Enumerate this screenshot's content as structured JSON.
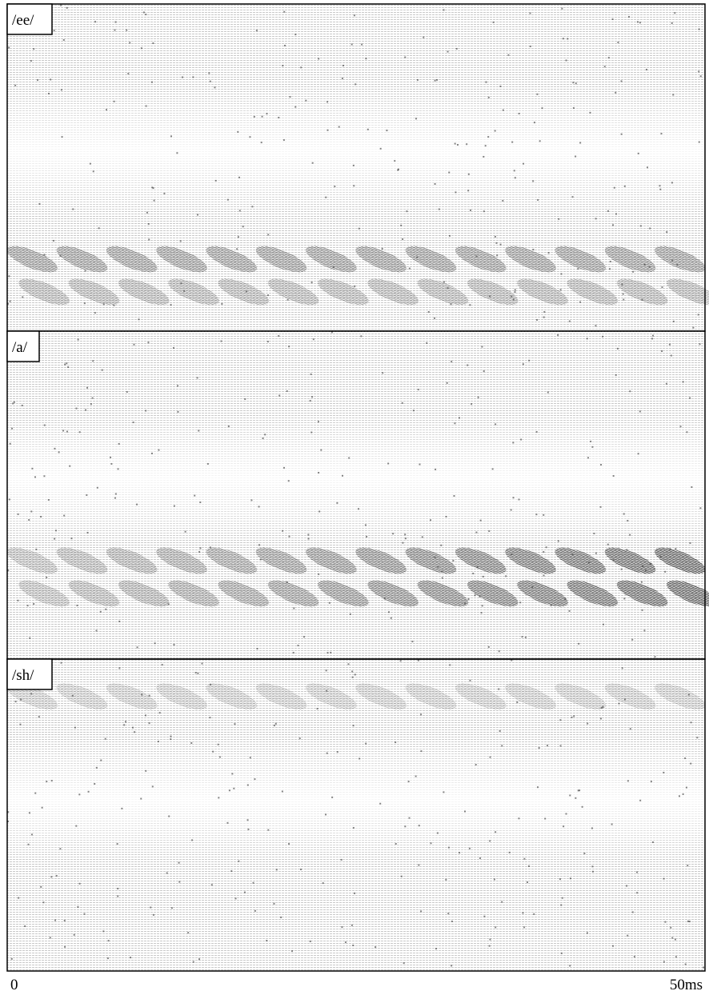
{
  "panels": [
    {
      "label": "/ee/"
    },
    {
      "label": "/a/"
    },
    {
      "label": "/sh/"
    }
  ],
  "axis": {
    "start": "0",
    "end": "50ms"
  }
}
